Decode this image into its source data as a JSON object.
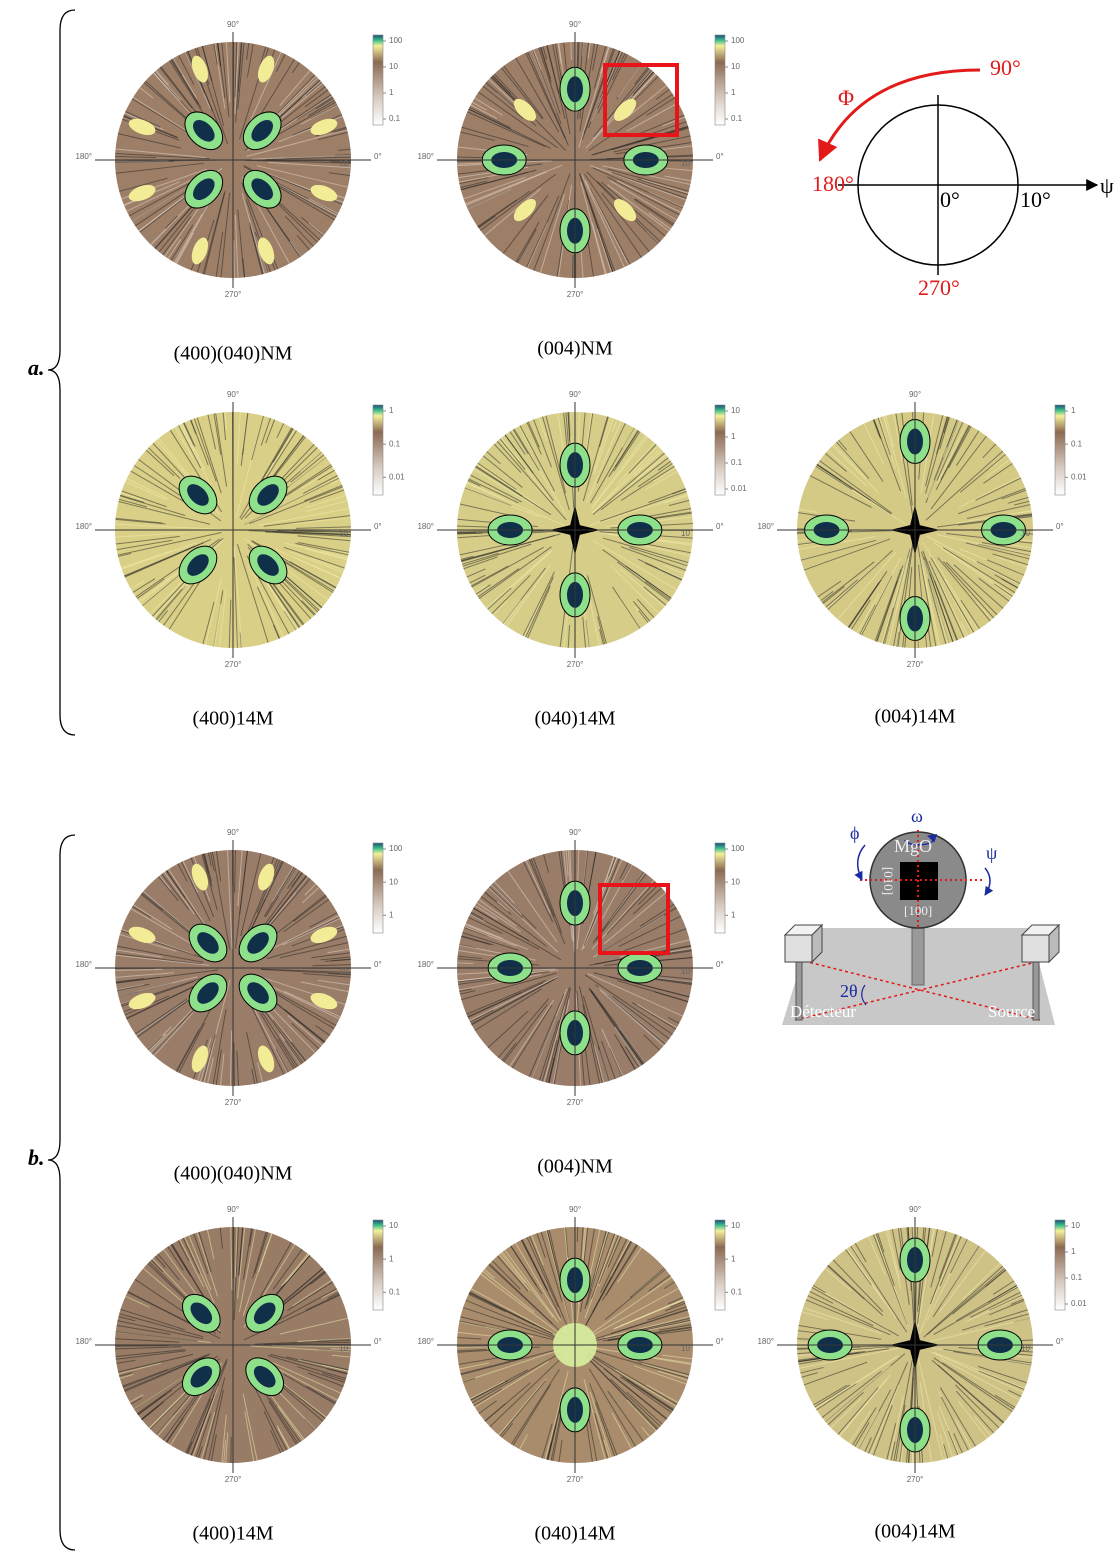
{
  "polar_labels": {
    "top": "90°",
    "left": "180°",
    "right": "0°",
    "bottom": "270°",
    "rim": "10"
  },
  "sections": [
    {
      "label": "a.",
      "panels": [
        {
          "caption": "(400)(040)NM",
          "scale": [
            "100",
            "10",
            "1",
            "0.1"
          ]
        },
        {
          "caption": "(004)NM",
          "scale": [
            "100",
            "10",
            "1",
            "0.1"
          ]
        },
        {
          "caption": "(400)14M",
          "scale": [
            "1",
            "0.1",
            "0.01"
          ]
        },
        {
          "caption": "(040)14M",
          "scale": [
            "10",
            "1",
            "0.1",
            "0.01"
          ]
        },
        {
          "caption": "(004)14M",
          "scale": [
            "1",
            "0.1",
            "0.01"
          ]
        }
      ]
    },
    {
      "label": "b.",
      "panels": [
        {
          "caption": "(400)(040)NM",
          "scale": [
            "100",
            "10",
            "1"
          ]
        },
        {
          "caption": "(004)NM",
          "scale": [
            "100",
            "10",
            "1"
          ]
        },
        {
          "caption": "(400)14M",
          "scale": [
            "10",
            "1",
            "0.1"
          ]
        },
        {
          "caption": "(040)14M",
          "scale": [
            "10",
            "1",
            "0.1"
          ]
        },
        {
          "caption": "(004)14M",
          "scale": [
            "10",
            "1",
            "0.1",
            "0.01"
          ]
        }
      ]
    }
  ],
  "schematic": {
    "phi_top": "90°",
    "phi_symbol": "Φ",
    "phi_left": "180°",
    "psi_zero": "0°",
    "psi_rim": "10°",
    "psi_symbol": "ψ",
    "phi_bottom": "270°"
  },
  "setup": {
    "omega": "ω",
    "phi": "ϕ",
    "psi": "ψ",
    "sample": "MgO",
    "dir_vertical": "[010]",
    "dir_horizontal": "[100]",
    "two_theta": "2θ",
    "detector": "Détecteur",
    "source": "Source"
  }
}
